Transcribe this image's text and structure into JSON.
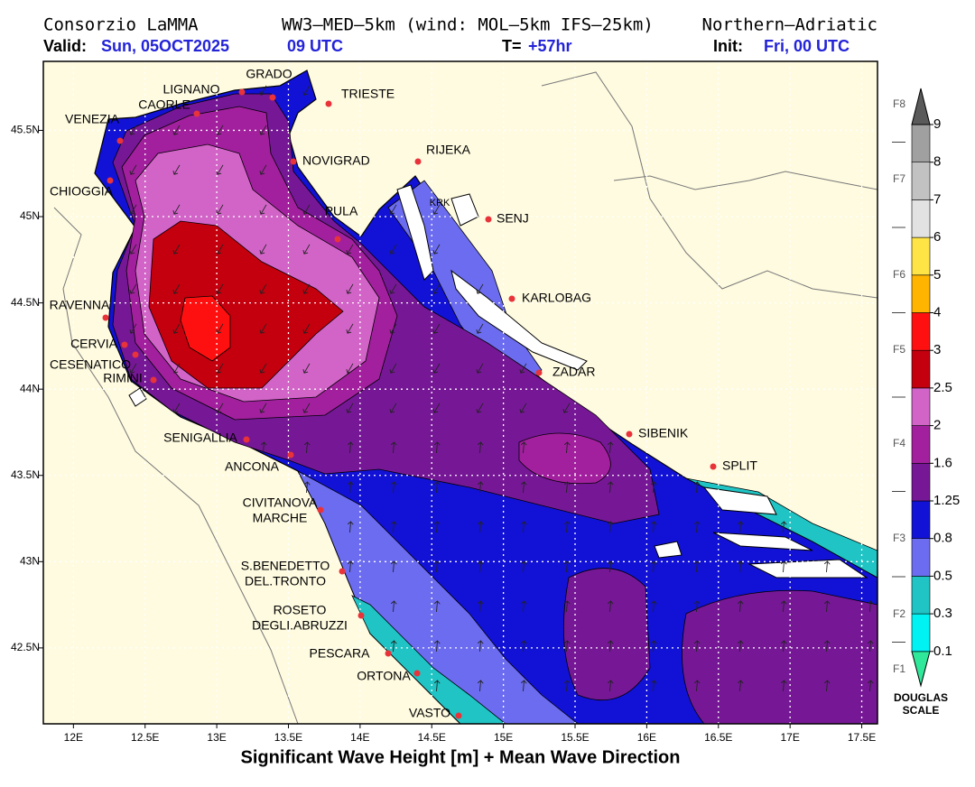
{
  "header": {
    "org": "Consorzio LaMMA",
    "model": "WW3–MED–5km (wind: MOL–5km IFS–25km)",
    "region": "Northern–Adriatic",
    "valid_label": "Valid:",
    "valid_date": "Sun, 05OCT2025",
    "valid_time": "09 UTC",
    "lead_label": "T=",
    "lead": "+57hr",
    "init_label": "Init:",
    "init": "Fri, 00 UTC"
  },
  "map": {
    "title": "Significant Wave Height [m] + Mean Wave Direction",
    "xlim": [
      11.79,
      17.61
    ],
    "ylim": [
      42.06,
      45.9
    ],
    "xticks": [
      {
        "value": 12,
        "label": "12E"
      },
      {
        "value": 12.5,
        "label": "12.5E"
      },
      {
        "value": 13,
        "label": "13E"
      },
      {
        "value": 13.5,
        "label": "13.5E"
      },
      {
        "value": 14,
        "label": "14E"
      },
      {
        "value": 14.5,
        "label": "14.5E"
      },
      {
        "value": 15,
        "label": "15E"
      },
      {
        "value": 15.5,
        "label": "15.5E"
      },
      {
        "value": 16,
        "label": "16E"
      },
      {
        "value": 16.5,
        "label": "16.5E"
      },
      {
        "value": 17,
        "label": "17E"
      },
      {
        "value": 17.5,
        "label": "17.5E"
      }
    ],
    "yticks": [
      {
        "value": 42.5,
        "label": "42.5N"
      },
      {
        "value": 43,
        "label": "43N"
      },
      {
        "value": 43.5,
        "label": "43.5N"
      },
      {
        "value": 44,
        "label": "44N"
      },
      {
        "value": 44.5,
        "label": "44.5N"
      },
      {
        "value": 45,
        "label": "45N"
      },
      {
        "value": 45.5,
        "label": "45.5N"
      }
    ],
    "cities": [
      [
        "GRADO"
      ],
      [
        "LIGNANO"
      ],
      [
        "CAORLE"
      ],
      [
        "TRIESTE"
      ],
      [
        "VENEZIA"
      ],
      [
        "NOVIGRAD"
      ],
      [
        "RIJEKA"
      ],
      [
        "CHIOGGIA"
      ],
      [
        "KRK"
      ],
      [
        "PULA"
      ],
      [
        "SENJ"
      ],
      [
        "KARLOBAG"
      ],
      [
        "RAVENNA"
      ],
      [
        "CERVIA"
      ],
      [
        "CESENATICO"
      ],
      [
        "RIMINI"
      ],
      [
        "ZADAR"
      ],
      [
        "SIBENIK"
      ],
      [
        "SENIGALLIA"
      ],
      [
        "SPLIT"
      ],
      [
        "ANCONA"
      ],
      [
        "CIVITANOVA",
        "MARCHE"
      ],
      [
        "S.BENEDETTO",
        "DEL.TRONTO"
      ],
      [
        "ROSETO",
        "DEGLI.ABRUZZI"
      ],
      [
        "PESCARA"
      ],
      [
        "ORTONA"
      ],
      [
        "VASTO"
      ]
    ]
  },
  "legend": {
    "levels": [
      0.1,
      0.3,
      0.5,
      0.8,
      1.25,
      1.6,
      2,
      2.5,
      3,
      4,
      5,
      6,
      7,
      8,
      9
    ],
    "colors": [
      "#30e89a",
      "#00f2f2",
      "#20c4c4",
      "#6c6cf0",
      "#1212d6",
      "#761896",
      "#a2209e",
      "#d264c8",
      "#c4000e",
      "#ff1010",
      "#ffb400",
      "#ffe446",
      "#e2e2e2",
      "#c2c2c2",
      "#a0a0a0",
      "#5a5a5a"
    ],
    "douglas": [
      "F1",
      "F2",
      "F3",
      "F4",
      "F5",
      "F6",
      "F7",
      "F8"
    ],
    "title": [
      "DOUGLAS",
      "SCALE"
    ]
  }
}
